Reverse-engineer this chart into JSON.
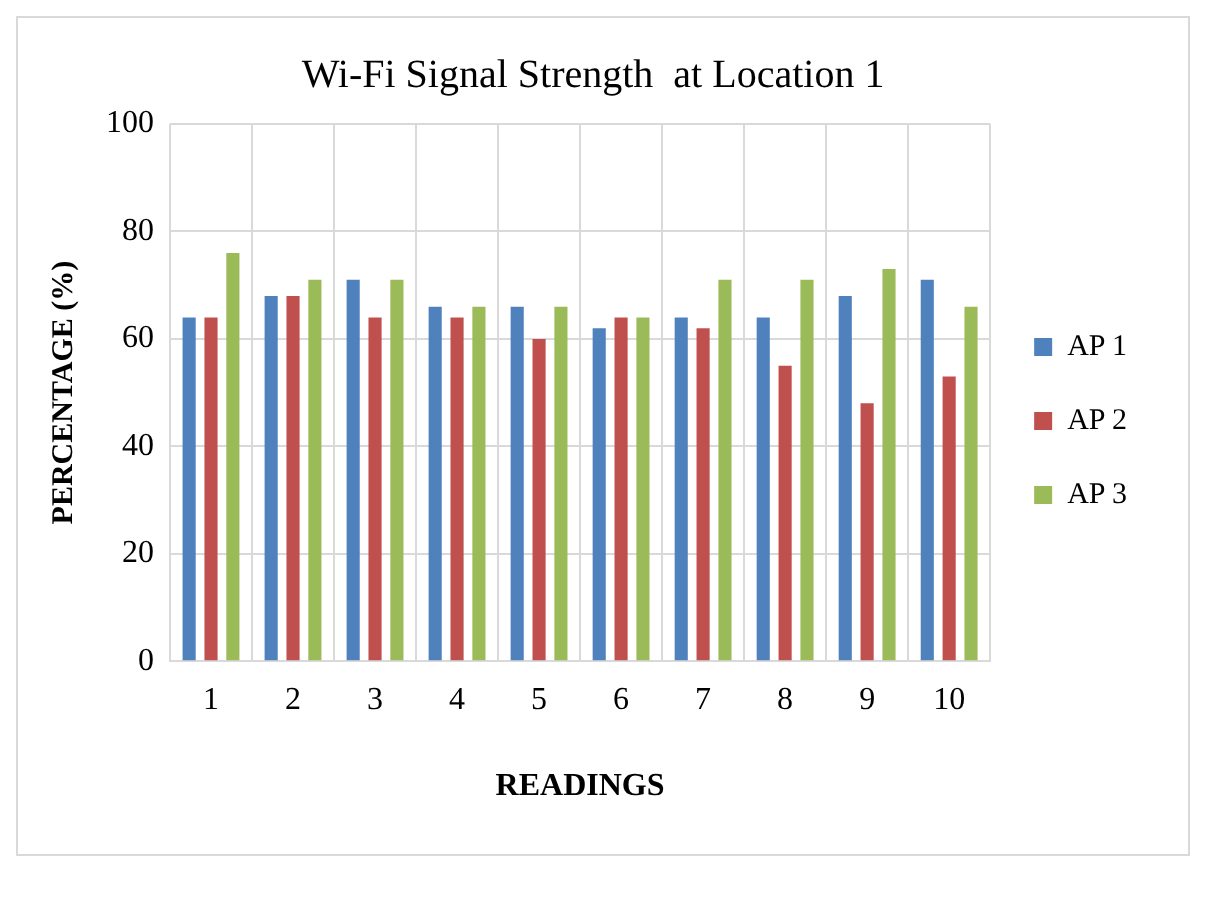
{
  "chart_data": {
    "type": "bar",
    "title": "Wi-Fi Signal Strength  at Location 1",
    "xlabel": "READINGS",
    "ylabel": "PERCENTAGE (%)",
    "categories": [
      "1",
      "2",
      "3",
      "4",
      "5",
      "6",
      "7",
      "8",
      "9",
      "10"
    ],
    "series": [
      {
        "name": "AP 1",
        "color": "#4f81bd",
        "values": [
          64,
          68,
          71,
          66,
          66,
          62,
          64,
          64,
          68,
          71
        ]
      },
      {
        "name": "AP 2",
        "color": "#c0504d",
        "values": [
          64,
          68,
          64,
          64,
          60,
          64,
          62,
          55,
          48,
          53
        ]
      },
      {
        "name": "AP 3",
        "color": "#9bbb59",
        "values": [
          76,
          71,
          71,
          66,
          66,
          64,
          71,
          71,
          73,
          66
        ]
      }
    ],
    "ylim": [
      0,
      100
    ],
    "yticks": [
      0,
      20,
      40,
      60,
      80,
      100
    ],
    "grid": true,
    "legend": "right"
  }
}
